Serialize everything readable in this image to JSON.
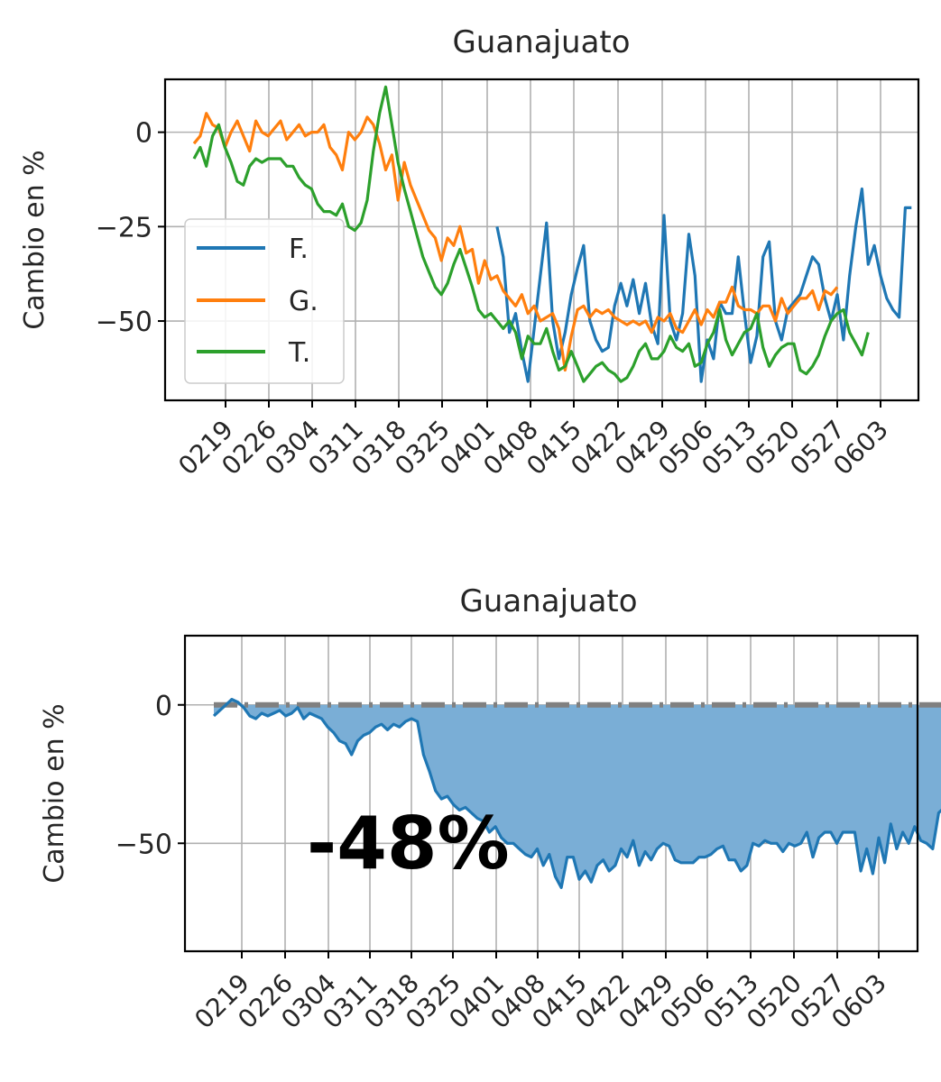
{
  "chart_data": [
    {
      "type": "line",
      "title": "Guanajuato",
      "ylabel": "Cambio en %",
      "xlabel": "",
      "x_ticks": [
        "0219",
        "0226",
        "0304",
        "0311",
        "0318",
        "0325",
        "0401",
        "0408",
        "0415",
        "0422",
        "0429",
        "0506",
        "0513",
        "0520",
        "0527",
        "0603"
      ],
      "x_range": [
        0,
        111
      ],
      "ylim": [
        -71,
        14
      ],
      "y_ticks": [
        0,
        -25,
        -50
      ],
      "grid": true,
      "legend_position": "center-left",
      "series": [
        {
          "name": "F.",
          "color": "#1f77b4",
          "x_start": 49,
          "values": [
            -25,
            -33,
            -53,
            -48,
            -58,
            -66,
            -52,
            -38,
            -24,
            -50,
            -60,
            -53,
            -43,
            -36,
            -30,
            -50,
            -55,
            -58,
            -57,
            -46,
            -40,
            -46,
            -39,
            -48,
            -40,
            -51,
            -56,
            -22,
            -50,
            -55,
            -48,
            -27,
            -38,
            -66,
            -55,
            -60,
            -45,
            -48,
            -48,
            -33,
            -48,
            -61,
            -54,
            -33,
            -29,
            -50,
            -55,
            -47,
            -45,
            -43,
            -38,
            -33,
            -35,
            -44,
            -50,
            -43,
            -55,
            -38,
            -25,
            -15,
            -35,
            -30,
            -38,
            -44,
            -47,
            -49,
            -20,
            -20
          ]
        },
        {
          "name": "G.",
          "color": "#ff7f0e",
          "x_start": 0,
          "values": [
            -3,
            -1,
            5,
            2,
            1,
            -4,
            0,
            3,
            -1,
            -5,
            3,
            0,
            -1,
            1,
            3,
            -2,
            0,
            2,
            -1,
            0,
            0,
            2,
            -4,
            -6,
            -10,
            0,
            -2,
            0,
            4,
            2,
            -3,
            -10,
            -6,
            -18,
            -8,
            -14,
            -18,
            -22,
            -26,
            -28,
            -34,
            -28,
            -30,
            -25,
            -32,
            -31,
            -40,
            -34,
            -39,
            -38,
            -42,
            -44,
            -46,
            -43,
            -48,
            -46,
            -50,
            -49,
            -48,
            -52,
            -63,
            -54,
            -47,
            -46,
            -49,
            -47,
            -48,
            -47,
            -49,
            -50,
            -51,
            -50,
            -51,
            -50,
            -53,
            -49,
            -50,
            -48,
            -52,
            -53,
            -50,
            -47,
            -51,
            -47,
            -49,
            -45,
            -45,
            -41,
            -46,
            -47,
            -47,
            -48,
            -46,
            -46,
            -50,
            -44,
            -48,
            -46,
            -44,
            -44,
            -42,
            -47,
            -42,
            -43,
            -41
          ]
        },
        {
          "name": "T.",
          "color": "#2ca02c",
          "x_start": 0,
          "values": [
            -7,
            -4,
            -9,
            -1,
            2,
            -4,
            -8,
            -13,
            -14,
            -9,
            -7,
            -8,
            -7,
            -7,
            -7,
            -9,
            -9,
            -12,
            -14,
            -15,
            -19,
            -21,
            -21,
            -22,
            -19,
            -25,
            -26,
            -24,
            -18,
            -5,
            5,
            12,
            2,
            -8,
            -15,
            -21,
            -27,
            -33,
            -37,
            -41,
            -43,
            -40,
            -35,
            -31,
            -36,
            -41,
            -47,
            -49,
            -48,
            -50,
            -52,
            -50,
            -53,
            -60,
            -54,
            -56,
            -56,
            -52,
            -58,
            -63,
            -62,
            -58,
            -62,
            -66,
            -64,
            -62,
            -61,
            -63,
            -64,
            -66,
            -65,
            -62,
            -58,
            -56,
            -60,
            -60,
            -58,
            -54,
            -57,
            -58,
            -56,
            -62,
            -61,
            -56,
            -53,
            -47,
            -55,
            -59,
            -56,
            -53,
            -52,
            -48,
            -57,
            -62,
            -59,
            -57,
            -56,
            -56,
            -63,
            -64,
            -62,
            -59,
            -54,
            -50,
            -48,
            -47,
            -53,
            -56,
            -59,
            -53
          ]
        }
      ]
    },
    {
      "type": "area",
      "title": "Guanajuato",
      "ylabel": "Cambio en %",
      "xlabel": "",
      "x_ticks": [
        "0219",
        "0226",
        "0304",
        "0311",
        "0318",
        "0325",
        "0401",
        "0408",
        "0415",
        "0422",
        "0429",
        "0506",
        "0513",
        "0520",
        "0527",
        "0603"
      ],
      "x_range": [
        0,
        111
      ],
      "ylim": [
        -89,
        25
      ],
      "y_ticks": [
        0,
        -50
      ],
      "grid": true,
      "baseline": 0,
      "annotation": "-48%",
      "series": [
        {
          "color": "#1f77b4",
          "fill_color": "#7aaed6",
          "x_start": 0,
          "values": [
            -4,
            -2,
            0,
            2,
            1,
            -1,
            -4,
            -5,
            -3,
            -4,
            -3,
            -2,
            -4,
            -3,
            -1,
            -5,
            -3,
            -4,
            -5,
            -8,
            -10,
            -13,
            -14,
            -18,
            -13,
            -11,
            -10,
            -8,
            -7,
            -9,
            -7,
            -8,
            -6,
            -5,
            -6,
            -18,
            -24,
            -31,
            -34,
            -33,
            -36,
            -38,
            -37,
            -39,
            -41,
            -42,
            -46,
            -44,
            -48,
            -50,
            -50,
            -52,
            -54,
            -55,
            -52,
            -58,
            -54,
            -62,
            -66,
            -55,
            -55,
            -63,
            -60,
            -64,
            -58,
            -56,
            -60,
            -58,
            -52,
            -55,
            -49,
            -58,
            -53,
            -56,
            -52,
            -50,
            -51,
            -56,
            -57,
            -57,
            -57,
            -55,
            -55,
            -54,
            -52,
            -51,
            -56,
            -56,
            -60,
            -58,
            -50,
            -51,
            -49,
            -50,
            -50,
            -53,
            -50,
            -51,
            -50,
            -46,
            -55,
            -48,
            -46,
            -46,
            -50,
            -46,
            -46,
            -46,
            -60,
            -52,
            -61,
            -48,
            -57,
            -43,
            -52,
            -46,
            -50,
            -44,
            -49,
            -50,
            -52,
            -39,
            -37
          ]
        }
      ]
    }
  ]
}
